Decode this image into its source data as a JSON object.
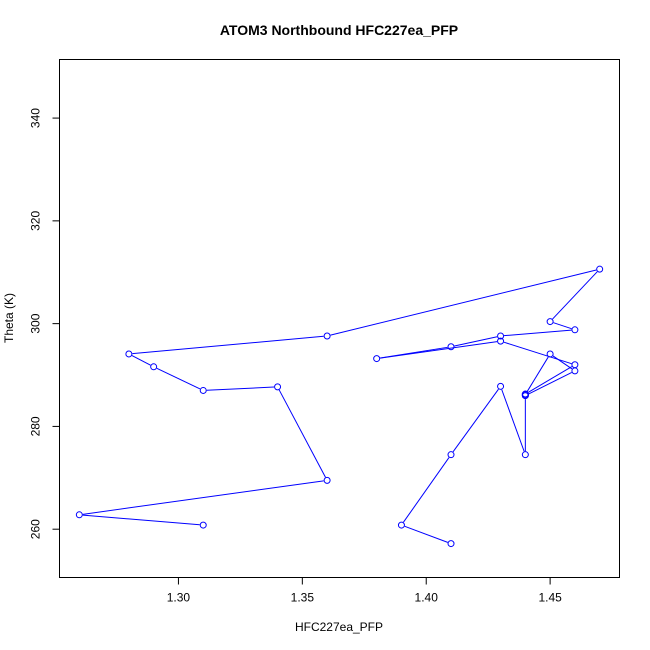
{
  "chart_data": {
    "type": "line",
    "title": "ATOM3 Northbound HFC227ea_PFP",
    "xlabel": "HFC227ea_PFP",
    "ylabel": "Theta (K)",
    "xlim": [
      1.252,
      1.478
    ],
    "ylim": [
      250.6,
      351.4
    ],
    "xticks": [
      1.3,
      1.35,
      1.4,
      1.45
    ],
    "xtick_labels": [
      "1.30",
      "1.35",
      "1.40",
      "1.45"
    ],
    "yticks": [
      260,
      280,
      300,
      320,
      340
    ],
    "ytick_labels": [
      "260",
      "280",
      "300",
      "320",
      "340"
    ],
    "grid": false,
    "colors": {
      "series": "#0000ff",
      "axes": "#000000"
    },
    "series": [
      {
        "x": [
          1.31,
          1.26,
          1.36,
          1.34,
          1.31,
          1.29,
          1.28,
          1.36,
          1.47,
          1.45,
          1.46,
          1.43,
          1.41,
          1.38,
          1.43,
          1.46,
          1.44,
          1.44,
          1.44,
          1.45,
          1.46,
          1.44,
          1.44,
          1.43,
          1.41,
          1.39,
          1.41
        ],
        "y": [
          260.8,
          262.8,
          269.5,
          287.7,
          287.0,
          291.6,
          294.1,
          297.6,
          310.6,
          300.4,
          298.8,
          297.6,
          295.5,
          293.2,
          296.6,
          292.0,
          286.3,
          286.0,
          286.2,
          294.1,
          290.8,
          286.0,
          274.5,
          287.8,
          274.5,
          260.8,
          257.2
        ]
      }
    ]
  }
}
